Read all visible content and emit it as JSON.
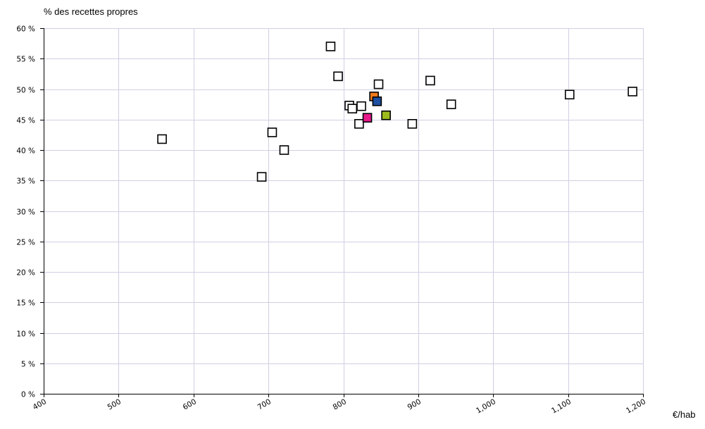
{
  "chart_data": {
    "type": "scatter",
    "ylabel": "% des recettes propres",
    "xlabel": "€/hab",
    "xlim": [
      400,
      1200
    ],
    "ylim": [
      0,
      60
    ],
    "xticks": [
      400,
      500,
      600,
      700,
      800,
      900,
      1000,
      1100,
      1200
    ],
    "xtick_labels": [
      "400",
      "500",
      "600",
      "700",
      "800",
      "900",
      "1,000",
      "1,100",
      "1,200"
    ],
    "yticks": [
      0,
      5,
      10,
      15,
      20,
      25,
      30,
      35,
      40,
      45,
      50,
      55,
      60
    ],
    "ytick_labels": [
      "0 %",
      "5 %",
      "10 %",
      "15 %",
      "20 %",
      "25 %",
      "30 %",
      "35 %",
      "40 %",
      "45 %",
      "50 %",
      "55 %",
      "60 %"
    ],
    "grid": true,
    "legend": "none",
    "marker": "square",
    "colors": {
      "grid": "#cfd0e3",
      "axis": "#000000",
      "marker_edge": "#000000"
    },
    "series": [
      {
        "color": "#ffffff",
        "points": [
          [
            558,
            41.8
          ],
          [
            691,
            35.6
          ],
          [
            705,
            42.9
          ],
          [
            721,
            40.0
          ],
          [
            783,
            57.0
          ],
          [
            793,
            52.1
          ],
          [
            808,
            47.3
          ],
          [
            812,
            46.8
          ],
          [
            824,
            47.2
          ],
          [
            821,
            44.3
          ],
          [
            847,
            50.8
          ],
          [
            892,
            44.3
          ],
          [
            916,
            51.4
          ],
          [
            944,
            47.5
          ],
          [
            1102,
            49.1
          ],
          [
            1186,
            49.6
          ]
        ]
      },
      {
        "color": "#f07b1c",
        "points": [
          [
            841,
            48.8
          ]
        ]
      },
      {
        "color": "#1e4fa0",
        "points": [
          [
            845,
            48.0
          ]
        ]
      },
      {
        "color": "#e8198b",
        "points": [
          [
            832,
            45.3
          ]
        ]
      },
      {
        "color": "#9dbb1d",
        "points": [
          [
            857,
            45.7
          ]
        ]
      }
    ]
  }
}
